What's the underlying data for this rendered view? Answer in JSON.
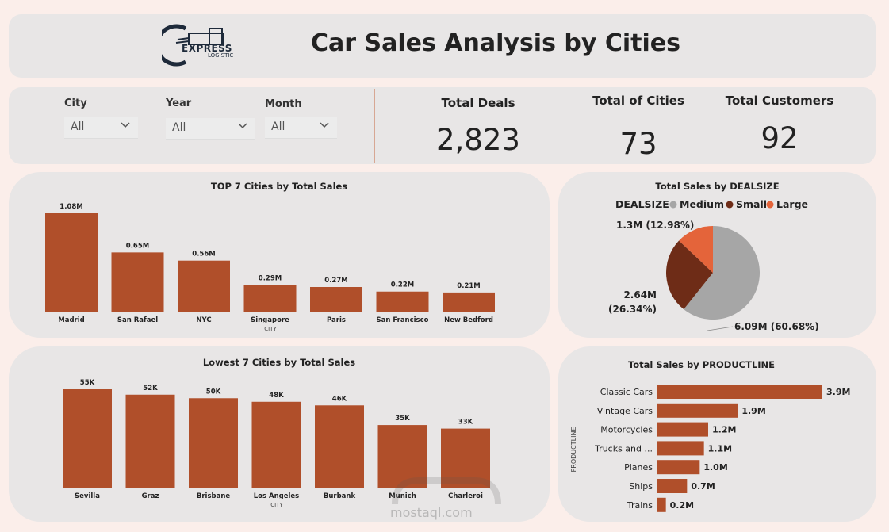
{
  "header": {
    "title": "Car Sales Analysis by Cities",
    "logo_text": "EXPRESS",
    "logo_sub": "LOGISTIC"
  },
  "filters": [
    {
      "label": "City",
      "value": "All"
    },
    {
      "label": "Year",
      "value": "All"
    },
    {
      "label": "Month",
      "value": "All"
    }
  ],
  "kpis": [
    {
      "label": "Total Deals",
      "value": "2,823"
    },
    {
      "label": "Total of Cities",
      "value": "73"
    },
    {
      "label": "Total Customers",
      "value": "92"
    }
  ],
  "colors": {
    "bar": "#b04f2a",
    "medium": "#a6a6a6",
    "small": "#6e2c17",
    "large": "#e4643a"
  },
  "watermark": "mostaql.com",
  "chart_data": [
    {
      "type": "bar",
      "title": "TOP 7 Cities by Total Sales",
      "xlabel": "CITY",
      "categories": [
        "Madrid",
        "San Rafael",
        "NYC",
        "Singapore",
        "Paris",
        "San Francisco",
        "New Bedford"
      ],
      "values": [
        1.08,
        0.65,
        0.56,
        0.29,
        0.27,
        0.22,
        0.21
      ],
      "labels": [
        "1.08M",
        "0.65M",
        "0.56M",
        "0.29M",
        "0.27M",
        "0.22M",
        "0.21M"
      ],
      "unit": "M"
    },
    {
      "type": "pie",
      "title": "Total Sales by DEALSIZE",
      "legend_title": "DEALSIZE",
      "legend_position": "top",
      "slices": [
        {
          "name": "Medium",
          "value": 6.09,
          "label": "6.09M (60.68%)"
        },
        {
          "name": "Small",
          "value": 2.64,
          "label": "2.64M (26.34%)"
        },
        {
          "name": "Large",
          "value": 1.3,
          "label": "1.3M (12.98%)"
        }
      ]
    },
    {
      "type": "bar",
      "title": "Lowest 7 Cities by Total Sales",
      "xlabel": "CITY",
      "categories": [
        "Sevilla",
        "Graz",
        "Brisbane",
        "Los Angeles",
        "Burbank",
        "Munich",
        "Charleroi"
      ],
      "values": [
        55,
        52,
        50,
        48,
        46,
        35,
        33
      ],
      "labels": [
        "55K",
        "52K",
        "50K",
        "48K",
        "46K",
        "35K",
        "33K"
      ],
      "unit": "K"
    },
    {
      "type": "bar",
      "orientation": "horizontal",
      "title": "Total Sales by PRODUCTLINE",
      "ylabel": "PRODUCTLINE",
      "categories": [
        "Classic Cars",
        "Vintage Cars",
        "Motorcycles",
        "Trucks and ...",
        "Planes",
        "Ships",
        "Trains"
      ],
      "values": [
        3.9,
        1.9,
        1.2,
        1.1,
        1.0,
        0.7,
        0.2
      ],
      "labels": [
        "3.9M",
        "1.9M",
        "1.2M",
        "1.1M",
        "1.0M",
        "0.7M",
        "0.2M"
      ],
      "unit": "M"
    }
  ]
}
